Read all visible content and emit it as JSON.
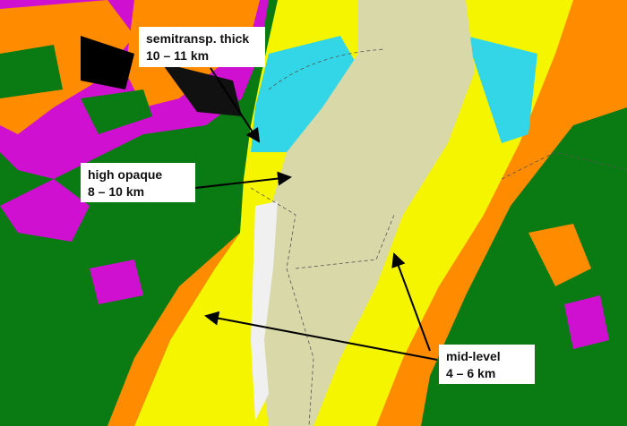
{
  "colors": {
    "cloud_free_land": "#0a7a12",
    "high_opaque": "#d8d8a8",
    "semitransparent_thick": "#33d6e6",
    "mid_level": "#f5f500",
    "low_level": "#ff8c00",
    "very_low": "#d010d0",
    "fractional": "#f0f0f0"
  },
  "annotations": [
    {
      "title": "semitransp. thick",
      "range": "10 – 11 km"
    },
    {
      "title": "high opaque",
      "range": "8 – 10 km"
    },
    {
      "title": "mid-level",
      "range": "4 – 6 km"
    }
  ]
}
